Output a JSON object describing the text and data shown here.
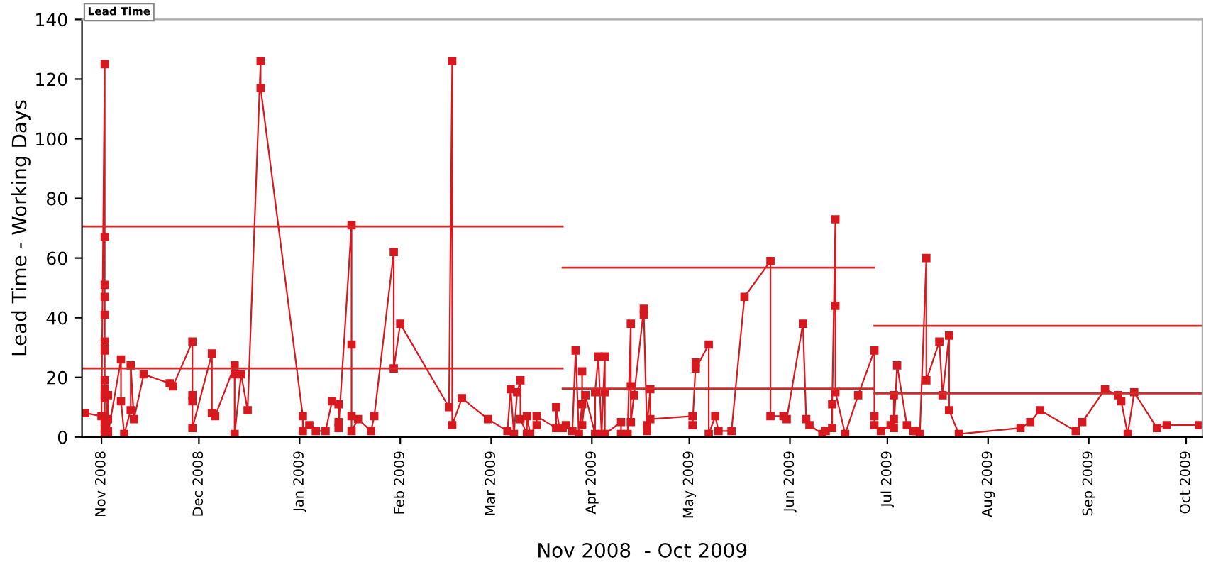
{
  "chart_data": {
    "type": "line",
    "xlabel": "Nov 2008  - Oct 2009",
    "ylabel": "Lead Time - Working Days",
    "annotations": [
      "Lead Time"
    ],
    "xlim": [
      "2008-10-26",
      "2009-10-06"
    ],
    "xticks": [
      {
        "value": "2008-11-01",
        "label": "Nov 2008"
      },
      {
        "value": "2008-12-01",
        "label": "Dec 2008"
      },
      {
        "value": "2009-01-01",
        "label": "Jan 2009"
      },
      {
        "value": "2009-02-01",
        "label": "Feb 2009"
      },
      {
        "value": "2009-03-01",
        "label": "Mar 2009"
      },
      {
        "value": "2009-04-01",
        "label": "Apr 2009"
      },
      {
        "value": "2009-05-01",
        "label": "May 2009"
      },
      {
        "value": "2009-06-01",
        "label": "Jun 2009"
      },
      {
        "value": "2009-07-01",
        "label": "Jul 2009"
      },
      {
        "value": "2009-08-01",
        "label": "Aug 2009"
      },
      {
        "value": "2009-09-01",
        "label": "Sep 2009"
      },
      {
        "value": "2009-10-01",
        "label": "Oct 2009"
      }
    ],
    "ylim": [
      0,
      140
    ],
    "yticks": [
      0,
      20,
      40,
      60,
      80,
      100,
      120,
      140
    ],
    "grid": false,
    "series": [
      {
        "color": "#d7191f",
        "marker": "square",
        "line_style": "solid",
        "x": [
          "2008-10-27",
          "2008-11-01",
          "2008-11-02",
          "2008-11-02",
          "2008-11-02",
          "2008-11-02",
          "2008-11-02",
          "2008-11-02",
          "2008-11-02",
          "2008-11-02",
          "2008-11-02",
          "2008-11-02",
          "2008-11-02",
          "2008-11-02",
          "2008-11-02",
          "2008-11-02",
          "2008-11-03",
          "2008-11-03",
          "2008-11-03",
          "2008-11-03",
          "2008-11-07",
          "2008-11-07",
          "2008-11-08",
          "2008-11-10",
          "2008-11-10",
          "2008-11-11",
          "2008-11-14",
          "2008-11-22",
          "2008-11-23",
          "2008-11-29",
          "2008-11-29",
          "2008-11-29",
          "2008-11-29",
          "2008-12-05",
          "2008-12-05",
          "2008-12-06",
          "2008-12-12",
          "2008-12-12",
          "2008-12-12",
          "2008-12-14",
          "2008-12-16",
          "2008-12-20",
          "2008-12-20",
          "2009-01-02",
          "2009-01-02",
          "2009-01-04",
          "2009-01-06",
          "2009-01-09",
          "2009-01-11",
          "2009-01-13",
          "2009-01-13",
          "2009-01-13",
          "2009-01-17",
          "2009-01-17",
          "2009-01-17",
          "2009-01-17",
          "2009-01-19",
          "2009-01-23",
          "2009-01-24",
          "2009-01-30",
          "2009-01-30",
          "2009-02-01",
          "2009-02-16",
          "2009-02-17",
          "2009-02-17",
          "2009-02-20",
          "2009-02-28",
          "2009-03-06",
          "2009-03-07",
          "2009-03-08",
          "2009-03-09",
          "2009-03-10",
          "2009-03-10",
          "2009-03-12",
          "2009-03-12",
          "2009-03-13",
          "2009-03-15",
          "2009-03-15",
          "2009-03-21",
          "2009-03-21",
          "2009-03-22",
          "2009-03-23",
          "2009-03-24",
          "2009-03-26",
          "2009-03-27",
          "2009-03-28",
          "2009-03-29",
          "2009-03-29",
          "2009-03-29",
          "2009-03-30",
          "2009-04-02",
          "2009-04-02",
          "2009-04-03",
          "2009-04-04",
          "2009-04-05",
          "2009-04-05",
          "2009-04-05",
          "2009-04-10",
          "2009-04-10",
          "2009-04-12",
          "2009-04-13",
          "2009-04-13",
          "2009-04-13",
          "2009-04-14",
          "2009-04-17",
          "2009-04-17",
          "2009-04-18",
          "2009-04-18",
          "2009-04-19",
          "2009-04-19",
          "2009-05-02",
          "2009-05-02",
          "2009-05-03",
          "2009-05-03",
          "2009-05-07",
          "2009-05-07",
          "2009-05-09",
          "2009-05-10",
          "2009-05-14",
          "2009-05-18",
          "2009-05-26",
          "2009-05-26",
          "2009-05-30",
          "2009-05-31",
          "2009-06-05",
          "2009-06-06",
          "2009-06-07",
          "2009-06-11",
          "2009-06-12",
          "2009-06-14",
          "2009-06-14",
          "2009-06-15",
          "2009-06-15",
          "2009-06-15",
          "2009-06-18",
          "2009-06-22",
          "2009-06-27",
          "2009-06-27",
          "2009-06-27",
          "2009-06-29",
          "2009-07-02",
          "2009-07-03",
          "2009-07-03",
          "2009-07-03",
          "2009-07-04",
          "2009-07-07",
          "2009-07-09",
          "2009-07-10",
          "2009-07-11",
          "2009-07-13",
          "2009-07-13",
          "2009-07-17",
          "2009-07-18",
          "2009-07-20",
          "2009-07-20",
          "2009-07-23",
          "2009-08-11",
          "2009-08-14",
          "2009-08-17",
          "2009-08-28",
          "2009-08-30",
          "2009-09-06",
          "2009-09-10",
          "2009-09-11",
          "2009-09-13",
          "2009-09-15",
          "2009-09-22",
          "2009-09-25",
          "2009-10-05"
        ],
        "values": [
          8,
          7,
          125,
          67,
          51,
          47,
          41,
          32,
          29,
          19,
          16,
          14,
          13,
          5,
          3,
          1,
          14,
          6,
          2,
          1,
          26,
          12,
          1,
          9,
          24,
          6,
          21,
          18,
          17,
          32,
          14,
          12,
          3,
          28,
          8,
          7,
          24,
          21,
          1,
          21,
          9,
          126,
          117,
          7,
          2,
          4,
          2,
          2,
          12,
          11,
          5,
          3,
          71,
          31,
          7,
          2,
          6,
          2,
          7,
          62,
          23,
          38,
          10,
          126,
          4,
          13,
          6,
          2,
          16,
          1,
          15,
          19,
          6,
          1,
          7,
          1,
          4,
          7,
          3,
          10,
          3,
          3,
          4,
          2,
          29,
          1,
          11,
          22,
          4,
          14,
          1,
          15,
          27,
          1,
          27,
          15,
          1,
          5,
          1,
          1,
          38,
          17,
          5,
          14,
          43,
          41,
          2,
          4,
          16,
          6,
          7,
          4,
          25,
          23,
          31,
          1,
          7,
          2,
          2,
          47,
          59,
          7,
          7,
          6,
          38,
          6,
          4,
          1,
          2,
          3,
          11,
          73,
          44,
          15,
          1,
          14,
          29,
          7,
          4,
          2,
          4,
          6,
          14,
          3,
          24,
          4,
          2,
          2,
          1,
          60,
          19,
          32,
          14,
          34,
          9,
          1,
          3,
          5,
          9,
          2,
          5,
          16,
          14,
          12,
          1,
          15,
          3,
          4,
          4
        ]
      },
      {
        "color": "#d42a2a",
        "marker": "none",
        "line_style": "solid",
        "x": [
          "2008-10-26",
          "2009-03-23"
        ],
        "values": [
          70.6,
          70.6
        ]
      },
      {
        "color": "#d42a2a",
        "marker": "none",
        "line_style": "solid",
        "x": [
          "2008-10-26",
          "2009-03-23"
        ],
        "values": [
          23,
          23
        ]
      },
      {
        "color": "#d42a2a",
        "marker": "none",
        "line_style": "solid",
        "x": [
          "2009-03-23",
          "2009-06-27"
        ],
        "values": [
          56.8,
          56.8
        ]
      },
      {
        "color": "#d42a2a",
        "marker": "none",
        "line_style": "solid",
        "x": [
          "2009-03-23",
          "2009-06-27"
        ],
        "values": [
          16.2,
          16.2
        ]
      },
      {
        "color": "#d42a2a",
        "marker": "none",
        "line_style": "solid",
        "x": [
          "2009-06-27",
          "2009-10-06"
        ],
        "values": [
          37.3,
          37.3
        ]
      },
      {
        "color": "#d42a2a",
        "marker": "none",
        "line_style": "solid",
        "x": [
          "2009-06-27",
          "2009-10-06"
        ],
        "values": [
          14.6,
          14.6
        ]
      }
    ]
  }
}
